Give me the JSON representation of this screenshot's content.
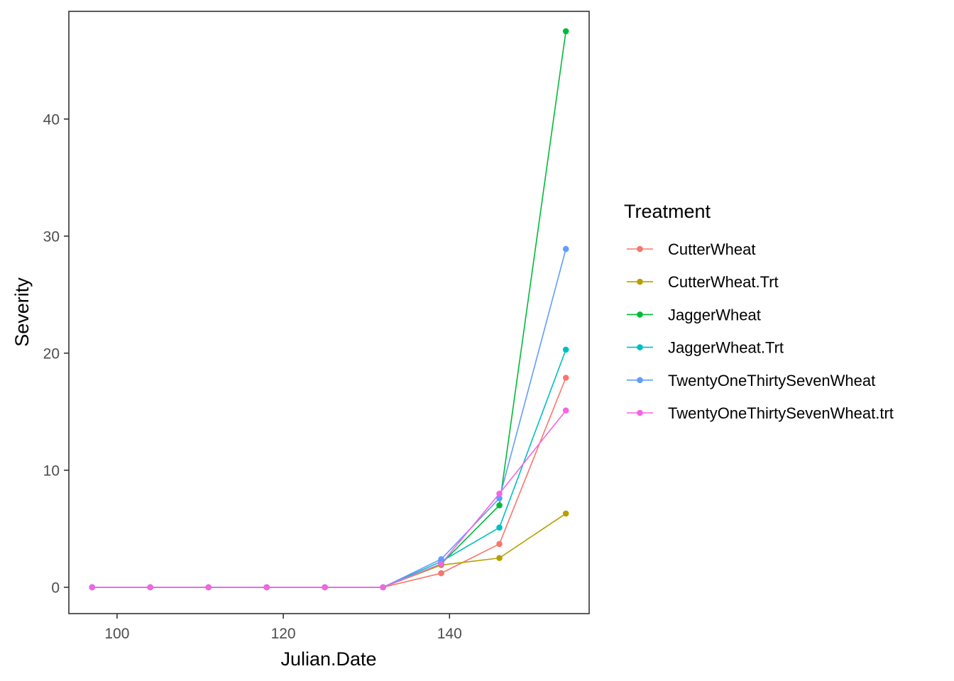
{
  "chart_data": {
    "type": "line",
    "xlabel": "Julian.Date",
    "ylabel": "Severity",
    "xlim": [
      94.2,
      156.8
    ],
    "ylim": [
      -2.25,
      49.2
    ],
    "xticks": [
      100,
      120,
      140
    ],
    "yticks": [
      0,
      10,
      20,
      30,
      40
    ],
    "grid": false,
    "legend": {
      "title": "Treatment",
      "position": "right"
    },
    "x": [
      97,
      104,
      111,
      118,
      125,
      132,
      139,
      146,
      154
    ],
    "series": [
      {
        "name": "CutterWheat",
        "color": "#F8766D",
        "values": [
          0,
          0,
          0,
          0,
          0,
          0,
          1.2,
          3.7,
          17.9
        ]
      },
      {
        "name": "CutterWheat.Trt",
        "color": "#B79F00",
        "values": [
          0,
          0,
          0,
          0,
          0,
          0,
          1.9,
          2.5,
          6.3
        ]
      },
      {
        "name": "JaggerWheat",
        "color": "#00BA38",
        "values": [
          0,
          0,
          0,
          0,
          0,
          0,
          2.0,
          7.0,
          47.5
        ]
      },
      {
        "name": "JaggerWheat.Trt",
        "color": "#00BFC4",
        "values": [
          0,
          0,
          0,
          0,
          0,
          0,
          2.2,
          5.1,
          20.3
        ]
      },
      {
        "name": "TwentyOneThirtySevenWheat",
        "color": "#619CFF",
        "values": [
          0,
          0,
          0,
          0,
          0,
          0,
          2.4,
          7.6,
          28.9
        ]
      },
      {
        "name": "TwentyOneThirtySevenWheat.trt",
        "color": "#F564E3",
        "values": [
          0,
          0,
          0,
          0,
          0,
          0,
          2.0,
          8.0,
          15.1
        ]
      }
    ]
  }
}
